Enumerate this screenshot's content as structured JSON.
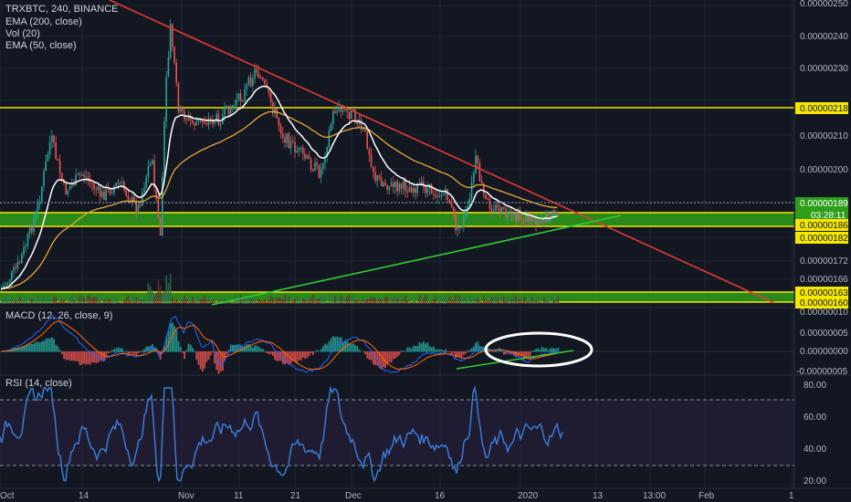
{
  "header": {
    "symbol_line": "TRXBTC, 240, BINANCE",
    "indicators": [
      "EMA (200, close)",
      "Vol (20)",
      "EMA (50, close)"
    ]
  },
  "panes": {
    "macd_title": "MACD (12, 26, close, 9)",
    "rsi_title": "RSI (14, close)"
  },
  "colors": {
    "background": "#131722",
    "trendline_down": "#e53935",
    "trendline_up": "#33cc33",
    "level": "#f5e700",
    "zone": "#2e9e1a",
    "ema_fast": "#ffffff",
    "ema_slow": "#e8a935",
    "rsi": "#3a7bd5",
    "macd": "#2962ff",
    "signal": "#ff6d00",
    "hist_up": "#26a69a",
    "hist_down": "#ef5350"
  },
  "chart_data": [
    {
      "type": "candlestick",
      "title": "TRXBTC, 240, BINANCE",
      "ylim": [
        1.58e-06,
        2.51e-07
      ],
      "price_axis_labels": [
        "0.00000250",
        "0.00000240",
        "0.00000230",
        "0.00000210",
        "0.00000200",
        "0.00000172",
        "0.00000166"
      ],
      "x_ticks": [
        "Oct",
        "14",
        "Nov",
        "11",
        "21",
        "Dec",
        "16",
        "2020",
        "13",
        "13:00",
        "Feb",
        "1"
      ],
      "horizontal_levels": [
        "0.00000218",
        "0.00000186",
        "0.00000182",
        "0.00000163",
        "0.00000160"
      ],
      "current_price": "0.00000189",
      "countdown": "03:28:11",
      "annotations": [
        "descending trendline (red)",
        "ascending trendline (green)",
        "support zone 0.00000182–0.00000186",
        "support zone 0.00000160–0.00000163"
      ]
    },
    {
      "type": "line",
      "title": "MACD (12, 26, close, 9)",
      "y_axis_labels": [
        "0.00000010",
        "0.00000005",
        "0.00000000",
        "-0.00000005"
      ]
    },
    {
      "type": "line",
      "title": "RSI (14, close)",
      "y_axis_labels": [
        "80.00",
        "60.00",
        "40.00",
        "20.00"
      ],
      "bands": [
        70,
        30
      ]
    }
  ]
}
